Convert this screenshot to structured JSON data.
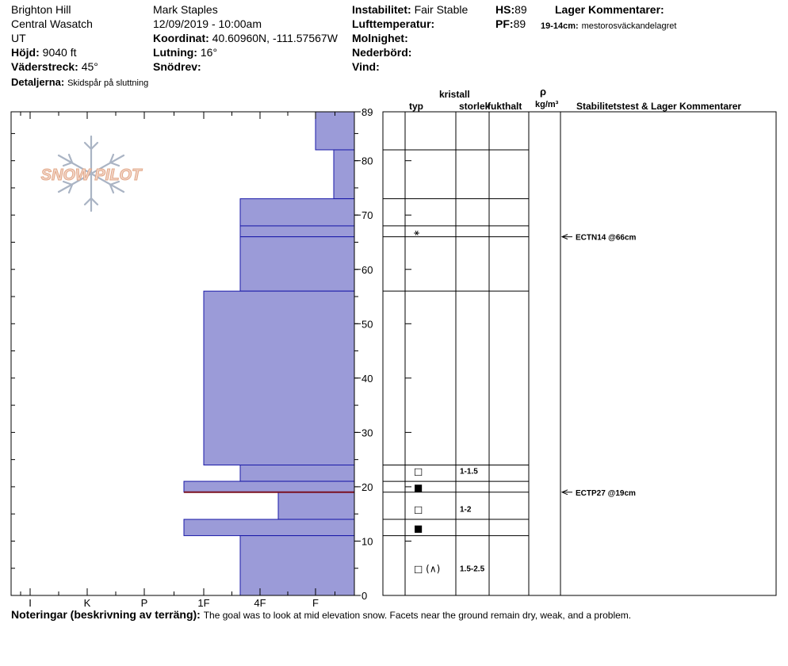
{
  "header": {
    "location_name": "Brighton Hill",
    "region": "Central Wasatch",
    "state": "UT",
    "elevation_label": "Höjd:",
    "elevation_value": "9040 ft",
    "aspect_label": "Väderstreck:",
    "aspect_value": "45°",
    "details_label": "Detaljerna:",
    "details_value": "Skidspår på sluttning",
    "observer": "Mark Staples",
    "datetime": "12/09/2019 - 10:00am",
    "coord_label": "Koordinat:",
    "coord_value": "40.60960N, -111.57567W",
    "slope_label": "Lutning:",
    "slope_value": "16°",
    "drift_label": "Snödrev:",
    "drift_value": "",
    "instability_label": "Instabilitet:",
    "instability_value": "Fair Stable",
    "airtemp_label": "Lufttemperatur:",
    "airtemp_value": "",
    "sky_label": "Molnighet:",
    "sky_value": "",
    "precip_label": "Nederbörd:",
    "precip_value": "",
    "wind_label": "Vind:",
    "wind_value": "",
    "hs_label": "HS:",
    "hs_value": "89",
    "pf_label": "PF:",
    "pf_value": "89",
    "layer_comments_label": "Lager Kommentarer:",
    "layer_comment_depth": "19-14cm:",
    "layer_comment_text": "mestorosväckandelagret"
  },
  "logo": {
    "text": "SNOW PILOT"
  },
  "columns": {
    "type": "typ",
    "crystal": "kristall",
    "size": "storlek",
    "moisture": "fukthalt",
    "rho": "ρ",
    "density_unit": "kg/m³",
    "stability": "Stabilitetstest & Lager Kommentarer"
  },
  "notes": {
    "label": "Noteringar (beskrivning av terräng):",
    "text": "The goal was to look at mid elevation snow. Facets near the ground remain dry, weak, and a problem."
  },
  "colors": {
    "layer_fill": "#9b9bd8",
    "layer_edge": "#1a1aa8",
    "weak_layer": "#7a1020"
  },
  "chart_data": {
    "type": "bar",
    "subtype": "snow-profile-hardness",
    "y_axis": {
      "label": "",
      "range": [
        0,
        89
      ],
      "ticks": [
        0,
        10,
        20,
        30,
        40,
        50,
        60,
        70,
        80,
        89
      ],
      "unit": "cm"
    },
    "x_axis": {
      "categories": [
        "I",
        "K",
        "P",
        "1F",
        "4F",
        "F"
      ],
      "direction": "hardness decreases to the right"
    },
    "layers": [
      {
        "top": 89,
        "bottom": 82,
        "hardness": "F"
      },
      {
        "top": 82,
        "bottom": 73,
        "hardness": "F+"
      },
      {
        "top": 73,
        "bottom": 68,
        "hardness": "4F-"
      },
      {
        "top": 68,
        "bottom": 66,
        "hardness": "4F-"
      },
      {
        "top": 66,
        "bottom": 56,
        "hardness": "4F-"
      },
      {
        "top": 56,
        "bottom": 24,
        "hardness": "1F"
      },
      {
        "top": 24,
        "bottom": 21,
        "hardness": "4F-"
      },
      {
        "top": 21,
        "bottom": 19,
        "hardness": "1F-"
      },
      {
        "top": 19,
        "bottom": 14,
        "hardness": "4F+"
      },
      {
        "top": 14,
        "bottom": 11,
        "hardness": "1F-"
      },
      {
        "top": 11,
        "bottom": 0,
        "hardness": "4F-"
      }
    ],
    "weak_layer_depth": 19,
    "layer_lines": [
      89,
      82,
      73,
      68,
      66,
      56,
      24,
      21,
      19,
      14,
      11
    ],
    "grain_symbols": [
      {
        "depth": 67,
        "symbol": "⚹̲",
        "size": ""
      },
      {
        "depth": 23,
        "symbol": "□",
        "size": "1-1.5"
      },
      {
        "depth": 20,
        "symbol": "■",
        "size": ""
      },
      {
        "depth": 16,
        "symbol": "□",
        "size": "1-2"
      },
      {
        "depth": 12.5,
        "symbol": "■",
        "size": ""
      },
      {
        "depth": 5,
        "symbol": "□ (∧)",
        "size": "1.5-2.5"
      }
    ],
    "stability_tests": [
      {
        "depth": 66,
        "label": "ECTN14 @66cm"
      },
      {
        "depth": 19,
        "label": "ECTP27 @19cm"
      }
    ]
  }
}
